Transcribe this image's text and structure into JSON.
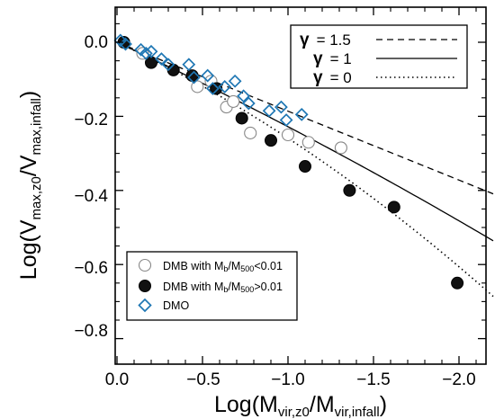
{
  "chart_data": {
    "type": "scatter",
    "xlabel": {
      "prefix": "Log(M",
      "sub1": "vir,z0",
      "mid": "/M",
      "sub2": "vir,infall",
      "suffix": ")"
    },
    "ylabel": {
      "prefix": "Log(V",
      "sub1": "max,z0",
      "mid": "/V",
      "sub2": "max,infall",
      "suffix": ")"
    },
    "xlim": [
      0.0,
      -2.2
    ],
    "ylim": [
      -0.83,
      0.06
    ],
    "x_ticks": [
      0.0,
      -0.5,
      -1.0,
      -1.5,
      -2.0
    ],
    "x_tick_labels": [
      "0.0",
      "−0.5",
      "−1.0",
      "−1.5",
      "−2.0"
    ],
    "y_ticks": [
      0.0,
      -0.2,
      -0.4,
      -0.6,
      -0.8
    ],
    "y_tick_labels": [
      "0.0",
      "−0.2",
      "−0.4",
      "−0.6",
      "−0.8"
    ],
    "curves": [
      {
        "name": "γ = 1.5",
        "label_greek": "γ",
        "label_eq": "= 1.5",
        "style": "dashed",
        "slope": 0.186,
        "curv": 0.0
      },
      {
        "name": "γ = 1",
        "label_greek": "γ",
        "label_eq": "= 1",
        "style": "solid",
        "slope": 0.215,
        "curv": 0.013
      },
      {
        "name": "γ = 0",
        "label_greek": "γ",
        "label_eq": "= 0",
        "style": "dotted",
        "slope": 0.215,
        "curv": 0.044
      }
    ],
    "series": [
      {
        "name": "DMB with Mb/M500<0.01",
        "legend_parts": {
          "a": "DMB with M",
          "b": "b",
          "c": "/M",
          "d": "500",
          "e": "<0.01"
        },
        "marker": "open-circle",
        "points": [
          {
            "x": -0.15,
            "y": -0.03
          },
          {
            "x": -0.47,
            "y": -0.12
          },
          {
            "x": -0.55,
            "y": -0.105
          },
          {
            "x": -0.64,
            "y": -0.175
          },
          {
            "x": -0.68,
            "y": -0.16
          },
          {
            "x": -0.78,
            "y": -0.245
          },
          {
            "x": -1.0,
            "y": -0.25
          },
          {
            "x": -1.12,
            "y": -0.27
          },
          {
            "x": -1.31,
            "y": -0.285
          }
        ]
      },
      {
        "name": "DMB with Mb/M500>0.01",
        "legend_parts": {
          "a": "DMB with M",
          "b": "b",
          "c": "/M",
          "d": "500",
          "e": ">0.01"
        },
        "marker": "filled-circle",
        "points": [
          {
            "x": -0.04,
            "y": 0.0
          },
          {
            "x": -0.2,
            "y": -0.055
          },
          {
            "x": -0.33,
            "y": -0.075
          },
          {
            "x": -0.44,
            "y": -0.09
          },
          {
            "x": -0.58,
            "y": -0.125
          },
          {
            "x": -0.73,
            "y": -0.205
          },
          {
            "x": -0.9,
            "y": -0.265
          },
          {
            "x": -1.1,
            "y": -0.335
          },
          {
            "x": -1.36,
            "y": -0.4
          },
          {
            "x": -1.62,
            "y": -0.445
          },
          {
            "x": -1.99,
            "y": -0.65
          }
        ]
      },
      {
        "name": "DMO",
        "legend_parts": {
          "a": "DMO"
        },
        "marker": "open-diamond",
        "points": [
          {
            "x": -0.02,
            "y": 0.005
          },
          {
            "x": -0.05,
            "y": -0.005
          },
          {
            "x": -0.14,
            "y": -0.02
          },
          {
            "x": -0.17,
            "y": -0.03
          },
          {
            "x": -0.2,
            "y": -0.025
          },
          {
            "x": -0.26,
            "y": -0.045
          },
          {
            "x": -0.3,
            "y": -0.06
          },
          {
            "x": -0.42,
            "y": -0.06
          },
          {
            "x": -0.45,
            "y": -0.095
          },
          {
            "x": -0.53,
            "y": -0.09
          },
          {
            "x": -0.56,
            "y": -0.125
          },
          {
            "x": -0.63,
            "y": -0.12
          },
          {
            "x": -0.69,
            "y": -0.105
          },
          {
            "x": -0.74,
            "y": -0.145
          },
          {
            "x": -0.77,
            "y": -0.165
          },
          {
            "x": -0.89,
            "y": -0.185
          },
          {
            "x": -0.96,
            "y": -0.175
          },
          {
            "x": -0.99,
            "y": -0.21
          },
          {
            "x": -1.08,
            "y": -0.195
          }
        ]
      }
    ],
    "grid": false,
    "legend_lines_placement": "top-right",
    "legend_markers_placement": "bottom-left"
  }
}
